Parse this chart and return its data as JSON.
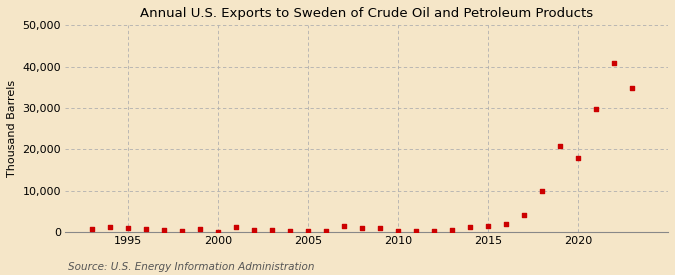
{
  "title": "Annual U.S. Exports to Sweden of Crude Oil and Petroleum Products",
  "ylabel": "Thousand Barrels",
  "source": "Source: U.S. Energy Information Administration",
  "background_color": "#f5e6c8",
  "plot_background_color": "#f5e6c8",
  "marker_color": "#cc0000",
  "grid_color": "#b0b0b0",
  "ylim": [
    0,
    50000
  ],
  "yticks": [
    0,
    10000,
    20000,
    30000,
    40000,
    50000
  ],
  "xlim": [
    1991.5,
    2025
  ],
  "xtick_positions": [
    1995,
    2000,
    2005,
    2010,
    2015,
    2020
  ],
  "years": [
    1993,
    1994,
    1995,
    1996,
    1997,
    1998,
    1999,
    2000,
    2001,
    2002,
    2003,
    2004,
    2005,
    2006,
    2007,
    2008,
    2009,
    2010,
    2011,
    2012,
    2013,
    2014,
    2015,
    2016,
    2017,
    2018,
    2019,
    2020,
    2021,
    2022,
    2023
  ],
  "values": [
    700,
    1100,
    1000,
    800,
    400,
    200,
    800,
    0,
    1200,
    400,
    400,
    200,
    100,
    200,
    1500,
    1000,
    900,
    300,
    100,
    100,
    500,
    1200,
    1500,
    2000,
    4000,
    9800,
    20800,
    17800,
    29700,
    40800,
    34800
  ],
  "title_fontsize": 9.5,
  "ylabel_fontsize": 8,
  "tick_fontsize": 8,
  "source_fontsize": 7.5,
  "marker_size": 12
}
